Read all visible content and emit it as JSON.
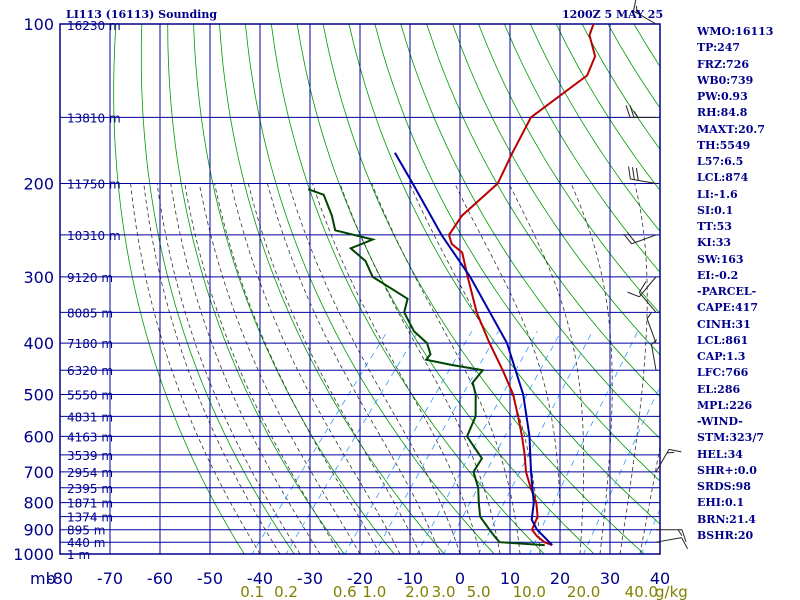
{
  "header": {
    "station_title": "LI113 (16113) Sounding",
    "date_title": "1200Z  5 MAY 25"
  },
  "colors": {
    "frame": "#00008b",
    "grid": "#0000a0",
    "dry_adiabat": "#009900",
    "moist_adiabat": "#333333",
    "mixing_ratio": "#3399ff",
    "temperature": "#bb0000",
    "dewpoint": "#004400",
    "parcel": "#0000aa",
    "text": "#00008b"
  },
  "indices": [
    "WMO:16113",
    "TP:247",
    "FRZ:726",
    "WB0:739",
    "PW:0.93",
    "RH:84.8",
    "MAXT:20.7",
    "TH:5549",
    "L57:6.5",
    "LCL:874",
    "LI:-1.6",
    "SI:0.1",
    "TT:53",
    "KI:33",
    "SW:163",
    "EI:-0.2",
    "-PARCEL-",
    "CAPE:417",
    "CINH:31",
    "LCL:861",
    "CAP:1.3",
    "LFC:766",
    "EL:286",
    "MPL:226",
    "-WIND-",
    "STM:323/7",
    "HEL:34",
    "SHR+:0.0",
    "SRDS:98",
    "EHI:0.1",
    "BRN:21.4",
    "BSHR:20"
  ],
  "chart_data": {
    "type": "line",
    "title": "LI113 (16113) Sounding",
    "subtitle": "1200Z  5 MAY 25",
    "xlabel": "",
    "ylabel": "mb",
    "x_axis": {
      "ticks": [
        -80,
        -70,
        -60,
        -50,
        -40,
        -30,
        -20,
        -10,
        0,
        10,
        20,
        30,
        40
      ],
      "range": [
        -80,
        40
      ]
    },
    "y_axis": {
      "ticks": [
        100,
        200,
        300,
        400,
        500,
        600,
        700,
        800,
        900,
        1000
      ],
      "range": [
        100,
        1000
      ],
      "scale": "skew-t log-p",
      "label": "mb"
    },
    "height_labels": [
      {
        "p": 100,
        "label": "16230 m"
      },
      {
        "p": 150,
        "label": "13810 m"
      },
      {
        "p": 200,
        "label": "11750 m"
      },
      {
        "p": 250,
        "label": "10310 m"
      },
      {
        "p": 300,
        "label": "9120 m"
      },
      {
        "p": 350,
        "label": "8085 m"
      },
      {
        "p": 400,
        "label": "7180 m"
      },
      {
        "p": 450,
        "label": "6320 m"
      },
      {
        "p": 500,
        "label": "5550 m"
      },
      {
        "p": 550,
        "label": "4831 m"
      },
      {
        "p": 600,
        "label": "4163 m"
      },
      {
        "p": 650,
        "label": "3539 m"
      },
      {
        "p": 700,
        "label": "2954 m"
      },
      {
        "p": 750,
        "label": "2395 m"
      },
      {
        "p": 800,
        "label": "1871 m"
      },
      {
        "p": 850,
        "label": "1374 m"
      },
      {
        "p": 900,
        "label": "895 m"
      },
      {
        "p": 950,
        "label": "440 m"
      },
      {
        "p": 1000,
        "label": "1 m"
      }
    ],
    "mixing_ratio_labels": [
      {
        "w": 0.1,
        "label": "0.1"
      },
      {
        "w": 0.2,
        "label": "0.2"
      },
      {
        "w": 0.6,
        "label": "0.6"
      },
      {
        "w": 1.0,
        "label": "1.0"
      },
      {
        "w": 2.0,
        "label": "2.0"
      },
      {
        "w": 3.0,
        "label": "3.0"
      },
      {
        "w": 5.0,
        "label": "5.0"
      },
      {
        "w": 10.0,
        "label": "10.0"
      },
      {
        "w": 20.0,
        "label": "20.0"
      },
      {
        "w": 40.0,
        "label": "40.0"
      }
    ],
    "mixing_ratio_unit": "g/kg",
    "series": [
      {
        "key": "temperature",
        "points": [
          [
            962,
            17.0
          ],
          [
            950,
            15.0
          ],
          [
            925,
            12.5
          ],
          [
            900,
            10.5
          ],
          [
            850,
            9.5
          ],
          [
            800,
            7.0
          ],
          [
            750,
            3.5
          ],
          [
            700,
            0.0
          ],
          [
            650,
            -3.0
          ],
          [
            600,
            -6.5
          ],
          [
            550,
            -10.5
          ],
          [
            500,
            -15.0
          ],
          [
            450,
            -21.0
          ],
          [
            400,
            -28.0
          ],
          [
            350,
            -35.5
          ],
          [
            300,
            -43.0
          ],
          [
            270,
            -48.0
          ],
          [
            260,
            -51.5
          ],
          [
            250,
            -53.5
          ],
          [
            230,
            -54.0
          ],
          [
            200,
            -52.0
          ],
          [
            175,
            -54.0
          ],
          [
            150,
            -56.0
          ],
          [
            125,
            -51.5
          ],
          [
            115,
            -53.0
          ],
          [
            105,
            -57.5
          ],
          [
            100,
            -58.5
          ]
        ]
      },
      {
        "key": "dewpoint",
        "points": [
          [
            962,
            15.5
          ],
          [
            950,
            6.0
          ],
          [
            925,
            4.0
          ],
          [
            900,
            2.0
          ],
          [
            850,
            -2.0
          ],
          [
            800,
            -4.5
          ],
          [
            750,
            -7.0
          ],
          [
            700,
            -10.5
          ],
          [
            660,
            -11.0
          ],
          [
            600,
            -17.5
          ],
          [
            550,
            -19.0
          ],
          [
            500,
            -22.5
          ],
          [
            475,
            -25.0
          ],
          [
            450,
            -25.0
          ],
          [
            440,
            -32.0
          ],
          [
            430,
            -38.0
          ],
          [
            420,
            -38.0
          ],
          [
            400,
            -40.5
          ],
          [
            380,
            -45.0
          ],
          [
            350,
            -50.0
          ],
          [
            330,
            -51.5
          ],
          [
            300,
            -62.0
          ],
          [
            280,
            -66.0
          ],
          [
            265,
            -71.0
          ],
          [
            255,
            -68.0
          ],
          [
            245,
            -77.0
          ],
          [
            230,
            -80.0
          ],
          [
            210,
            -85.0
          ],
          [
            205,
            -89.0
          ]
        ]
      },
      {
        "key": "parcel",
        "points": [
          [
            962,
            17.0
          ],
          [
            900,
            11.5
          ],
          [
            861,
            8.8
          ],
          [
            800,
            6.5
          ],
          [
            700,
            1.0
          ],
          [
            600,
            -5.0
          ],
          [
            500,
            -13.0
          ],
          [
            400,
            -24.5
          ],
          [
            300,
            -42.5
          ],
          [
            250,
            -55.0
          ],
          [
            200,
            -69.0
          ],
          [
            175,
            -77.5
          ]
        ]
      }
    ],
    "wind_barbs": [
      {
        "p": 100,
        "dir": 300,
        "spd": 15
      },
      {
        "p": 150,
        "dir": 270,
        "spd": 25
      },
      {
        "p": 200,
        "dir": 280,
        "spd": 30
      },
      {
        "p": 250,
        "dir": 250,
        "spd": 20
      },
      {
        "p": 300,
        "dir": 220,
        "spd": 10
      },
      {
        "p": 350,
        "dir": 320,
        "spd": 10
      },
      {
        "p": 400,
        "dir": 340,
        "spd": 5
      },
      {
        "p": 450,
        "dir": 350,
        "spd": 5
      },
      {
        "p": 700,
        "dir": 30,
        "spd": 15
      },
      {
        "p": 900,
        "dir": 90,
        "spd": 15
      },
      {
        "p": 950,
        "dir": 80,
        "spd": 10
      }
    ]
  }
}
